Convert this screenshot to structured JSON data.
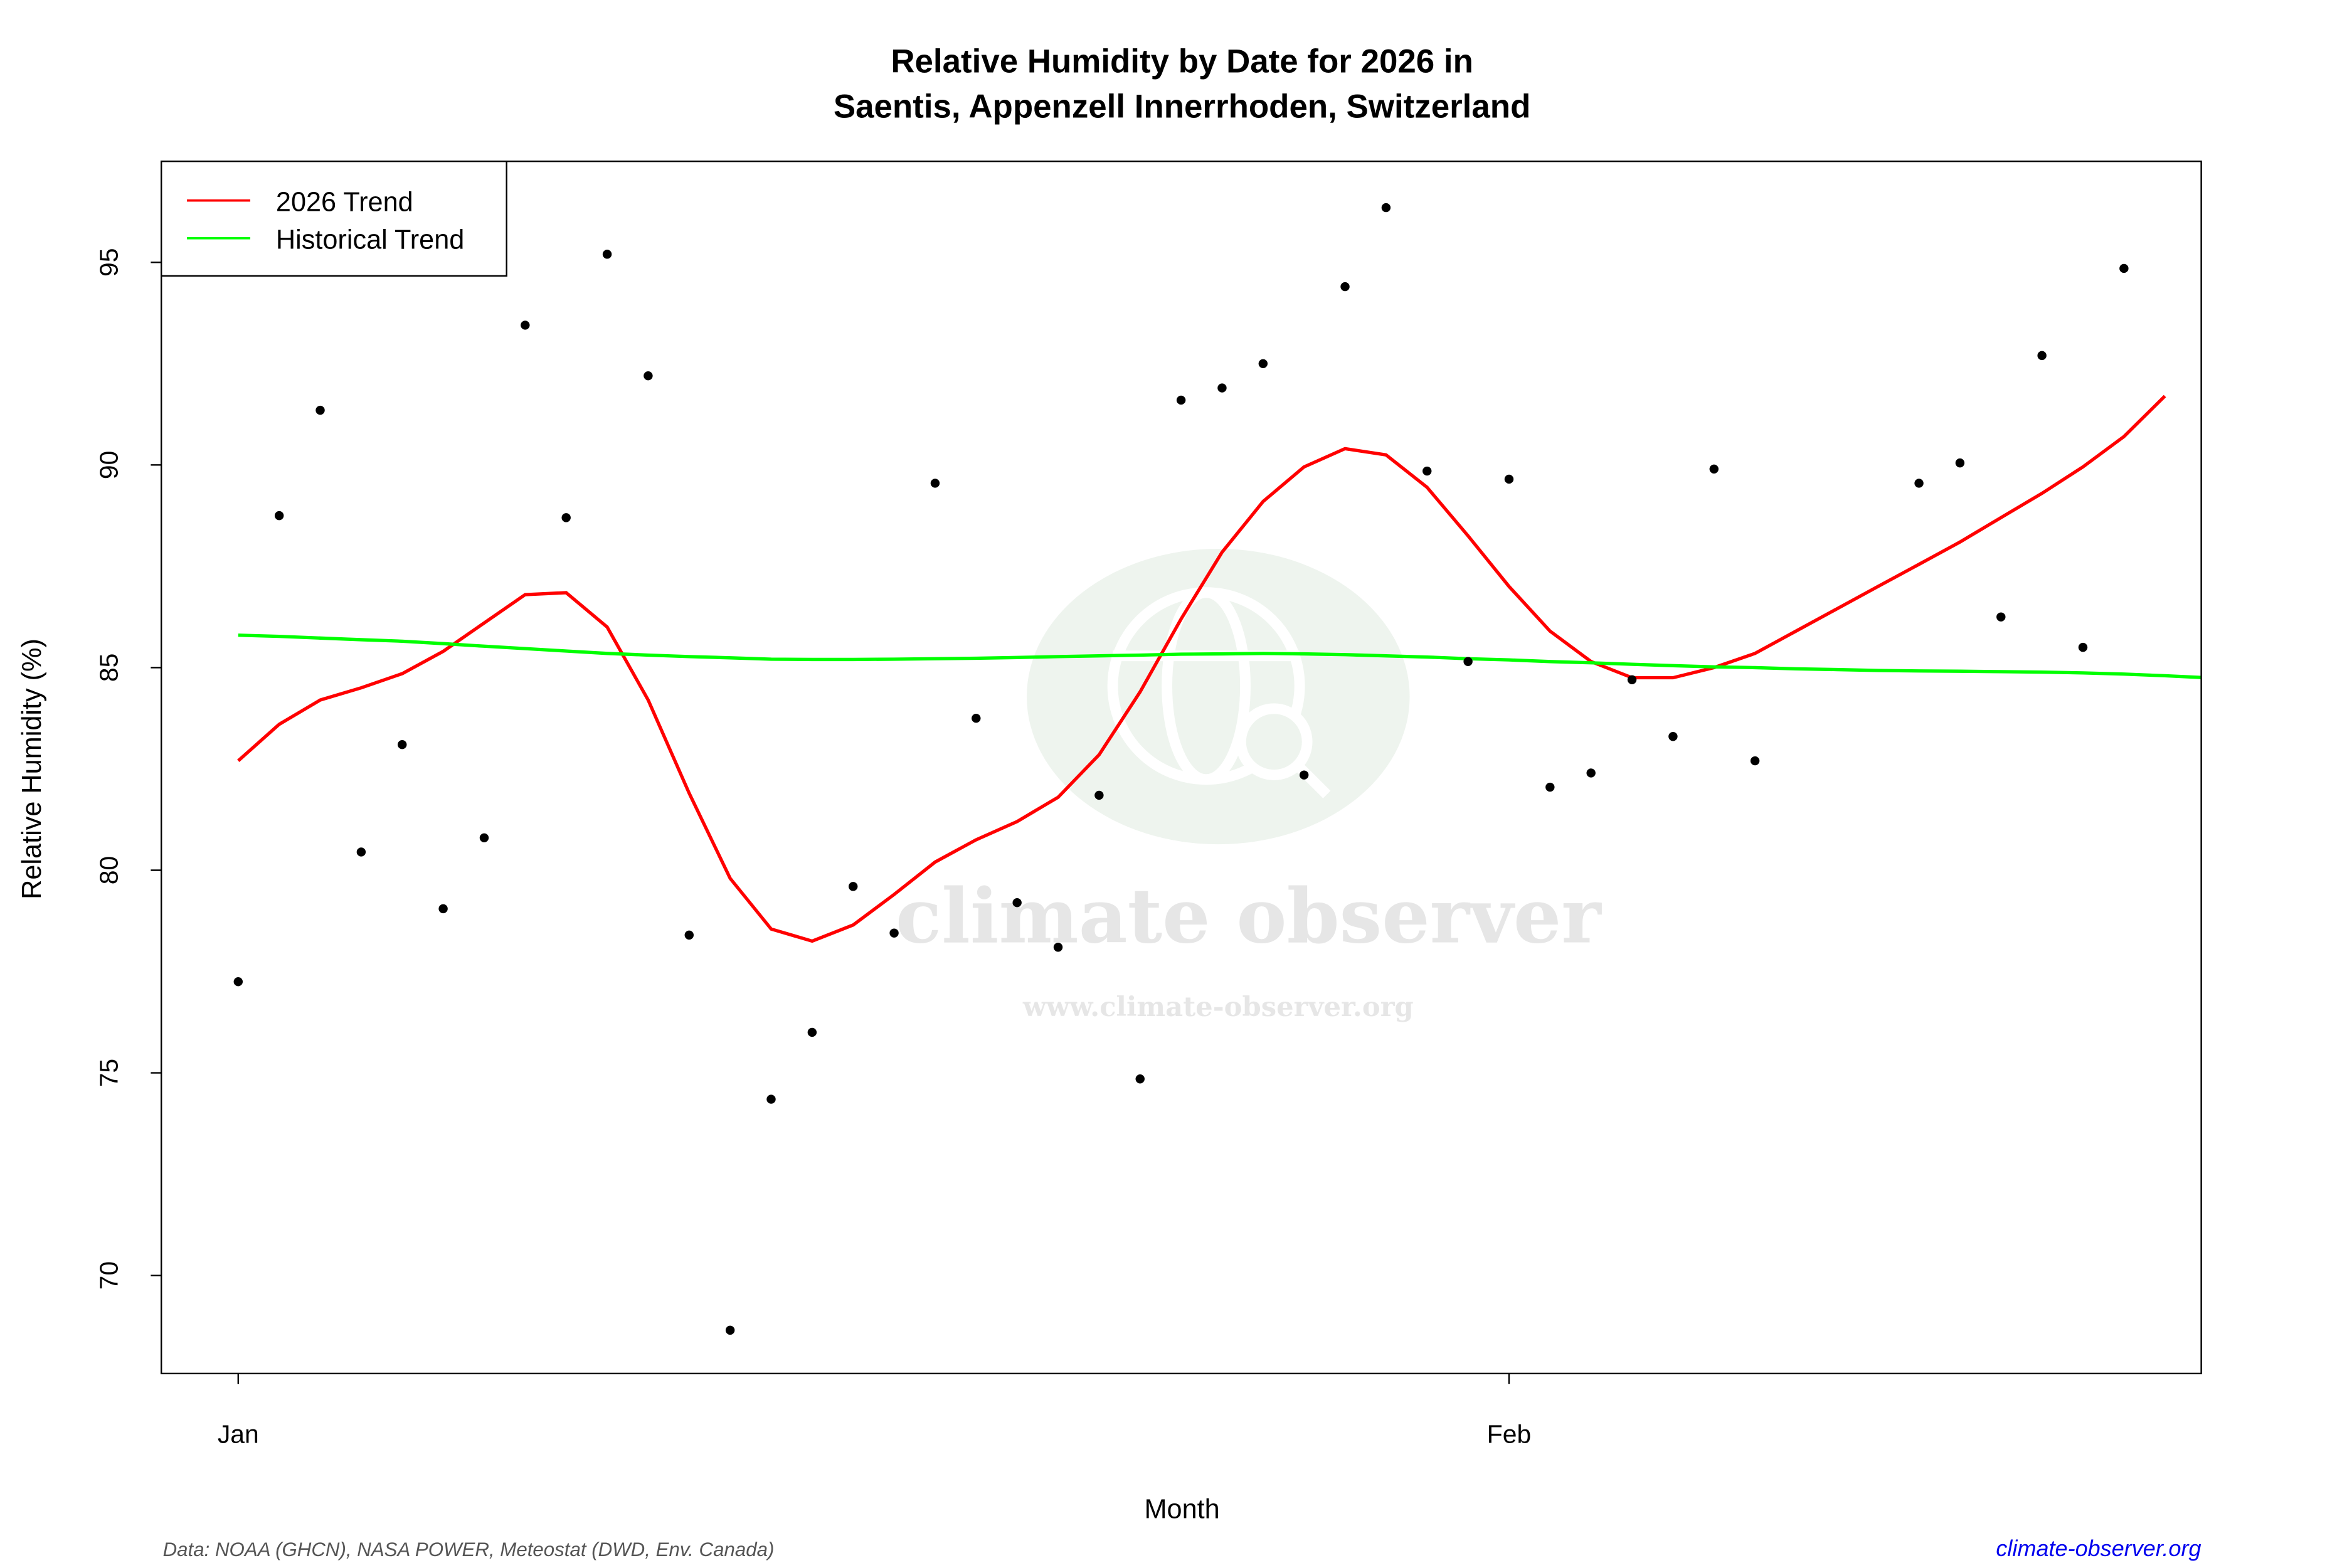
{
  "chart_data": {
    "type": "scatter",
    "title": "Relative Humidity by Date for 2026 in",
    "subtitle": "Saentis, Appenzell Innerrhoden, Switzerland",
    "xlabel": "Month",
    "ylabel": "Relative Humidity (%)",
    "x_ticks": [
      {
        "label": "Jan",
        "date": "2026-01-01"
      },
      {
        "label": "Feb",
        "date": "2026-02-01"
      }
    ],
    "y_ticks": [
      70,
      75,
      80,
      85,
      90,
      95
    ],
    "ylim": [
      67.6,
      97.4
    ],
    "xlim": [
      "2025-12-30",
      "2026-02-18"
    ],
    "grid": false,
    "legend_position": "top-left",
    "legend": [
      {
        "label": "2026 Trend",
        "color": "#ff0000"
      },
      {
        "label": "Historical Trend",
        "color": "#00ff00"
      }
    ],
    "points_color": "#000000",
    "points": [
      [
        "2026-01-01",
        77.25
      ],
      [
        "2026-01-02",
        88.75
      ],
      [
        "2026-01-03",
        91.35
      ],
      [
        "2026-01-04",
        80.45
      ],
      [
        "2026-01-05",
        83.1
      ],
      [
        "2026-01-06",
        79.05
      ],
      [
        "2026-01-07",
        80.8
      ],
      [
        "2026-01-08",
        93.45
      ],
      [
        "2026-01-09",
        88.7
      ],
      [
        "2026-01-10",
        95.2
      ],
      [
        "2026-01-11",
        92.2
      ],
      [
        "2026-01-12",
        78.4
      ],
      [
        "2026-01-13",
        68.65
      ],
      [
        "2026-01-14",
        74.35
      ],
      [
        "2026-01-15",
        76.0
      ],
      [
        "2026-01-16",
        79.6
      ],
      [
        "2026-01-17",
        78.45
      ],
      [
        "2026-01-18",
        89.55
      ],
      [
        "2026-01-19",
        83.75
      ],
      [
        "2026-01-20",
        79.2
      ],
      [
        "2026-01-21",
        78.1
      ],
      [
        "2026-01-22",
        81.85
      ],
      [
        "2026-01-23",
        74.85
      ],
      [
        "2026-01-24",
        91.6
      ],
      [
        "2026-01-25",
        91.9
      ],
      [
        "2026-01-26",
        92.5
      ],
      [
        "2026-01-27",
        82.35
      ],
      [
        "2026-01-28",
        94.4
      ],
      [
        "2026-01-29",
        96.35
      ],
      [
        "2026-01-30",
        89.85
      ],
      [
        "2026-01-31",
        85.15
      ],
      [
        "2026-02-01",
        89.65
      ],
      [
        "2026-02-02",
        82.05
      ],
      [
        "2026-02-03",
        82.4
      ],
      [
        "2026-02-04",
        84.7
      ],
      [
        "2026-02-05",
        83.3
      ],
      [
        "2026-02-06",
        89.9
      ],
      [
        "2026-02-07",
        82.7
      ],
      [
        "2026-02-11",
        89.55
      ],
      [
        "2026-02-12",
        90.05
      ],
      [
        "2026-02-13",
        86.25
      ],
      [
        "2026-02-14",
        92.7
      ],
      [
        "2026-02-15",
        85.5
      ],
      [
        "2026-02-16",
        94.85
      ]
    ],
    "series": [
      {
        "name": "2026 Trend",
        "color": "#ff0000",
        "start_date": "2026-01-01",
        "values": [
          82.7,
          83.6,
          84.2,
          84.5,
          84.85,
          85.4,
          86.1,
          86.8,
          86.85,
          86.0,
          84.2,
          81.9,
          79.8,
          78.55,
          78.25,
          78.65,
          79.4,
          80.2,
          80.75,
          81.2,
          81.8,
          82.85,
          84.4,
          86.2,
          87.85,
          89.1,
          89.95,
          90.4,
          90.25,
          89.45,
          88.25,
          87.0,
          85.9,
          85.15,
          84.75,
          84.75,
          85.0,
          85.35,
          85.9,
          86.45,
          87.0,
          87.55,
          88.1,
          88.7,
          89.3,
          89.95,
          90.7,
          91.7
        ]
      },
      {
        "name": "Historical Trend",
        "color": "#00ff00",
        "start_date": "2026-01-01",
        "values": [
          85.8,
          85.77,
          85.73,
          85.69,
          85.65,
          85.59,
          85.53,
          85.47,
          85.41,
          85.35,
          85.31,
          85.27,
          85.24,
          85.21,
          85.2,
          85.2,
          85.21,
          85.22,
          85.23,
          85.25,
          85.27,
          85.29,
          85.31,
          85.33,
          85.34,
          85.35,
          85.34,
          85.32,
          85.29,
          85.26,
          85.22,
          85.19,
          85.15,
          85.12,
          85.08,
          85.05,
          85.02,
          85.0,
          84.97,
          84.95,
          84.93,
          84.92,
          84.91,
          84.9,
          84.89,
          84.87,
          84.84,
          84.8,
          84.75,
          84.7
        ]
      }
    ]
  },
  "watermark": {
    "name": "climate observer",
    "url": "www.climate-observer.org"
  },
  "footer": {
    "source": "Data: NOAA (GHCN), NASA POWER, Meteostat (DWD, Env. Canada)",
    "link": "climate-observer.org"
  }
}
